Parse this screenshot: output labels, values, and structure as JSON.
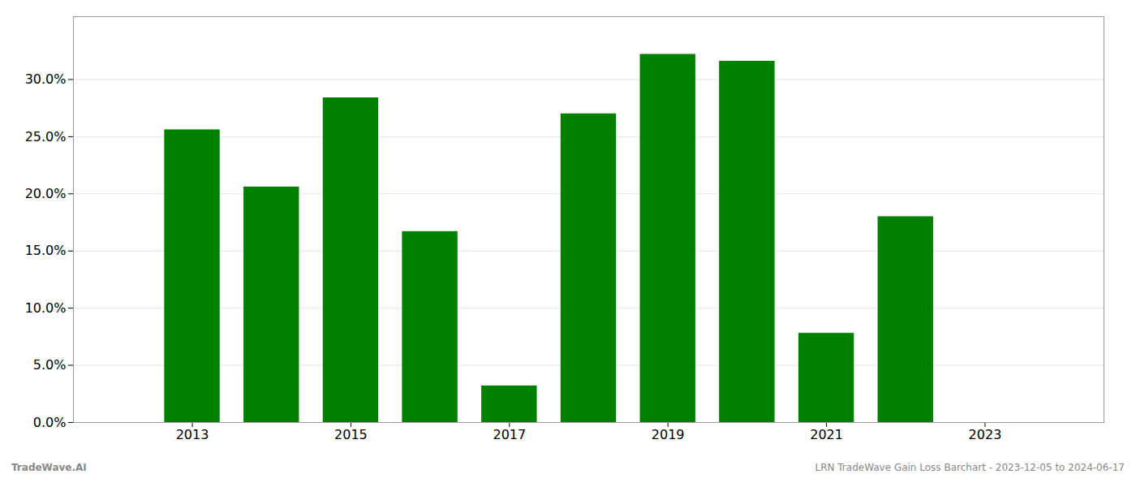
{
  "chart_data": {
    "type": "bar",
    "x": [
      2013,
      2014,
      2015,
      2016,
      2017,
      2018,
      2019,
      2020,
      2021,
      2022,
      2023
    ],
    "values": [
      0.256,
      0.206,
      0.284,
      0.167,
      0.032,
      0.27,
      0.322,
      0.316,
      0.078,
      0.18,
      0.0
    ],
    "color": "#008000",
    "xlim": [
      2011.5,
      2024.5
    ],
    "xticks": [
      2013,
      2015,
      2017,
      2019,
      2021,
      2023
    ],
    "ylim": [
      0,
      0.355
    ],
    "yticks": [
      {
        "value": 0.0,
        "label": "0.0%"
      },
      {
        "value": 0.05,
        "label": "5.0%"
      },
      {
        "value": 0.1,
        "label": "10.0%"
      },
      {
        "value": 0.15,
        "label": "15.0%"
      },
      {
        "value": 0.2,
        "label": "20.0%"
      },
      {
        "value": 0.25,
        "label": "25.0%"
      },
      {
        "value": 0.3,
        "label": "30.0%"
      }
    ],
    "grid": true,
    "annotations": [
      "TradeWave.AI",
      "LRN TradeWave Gain Loss Barchart - 2023-12-05 to 2024-06-17"
    ]
  }
}
